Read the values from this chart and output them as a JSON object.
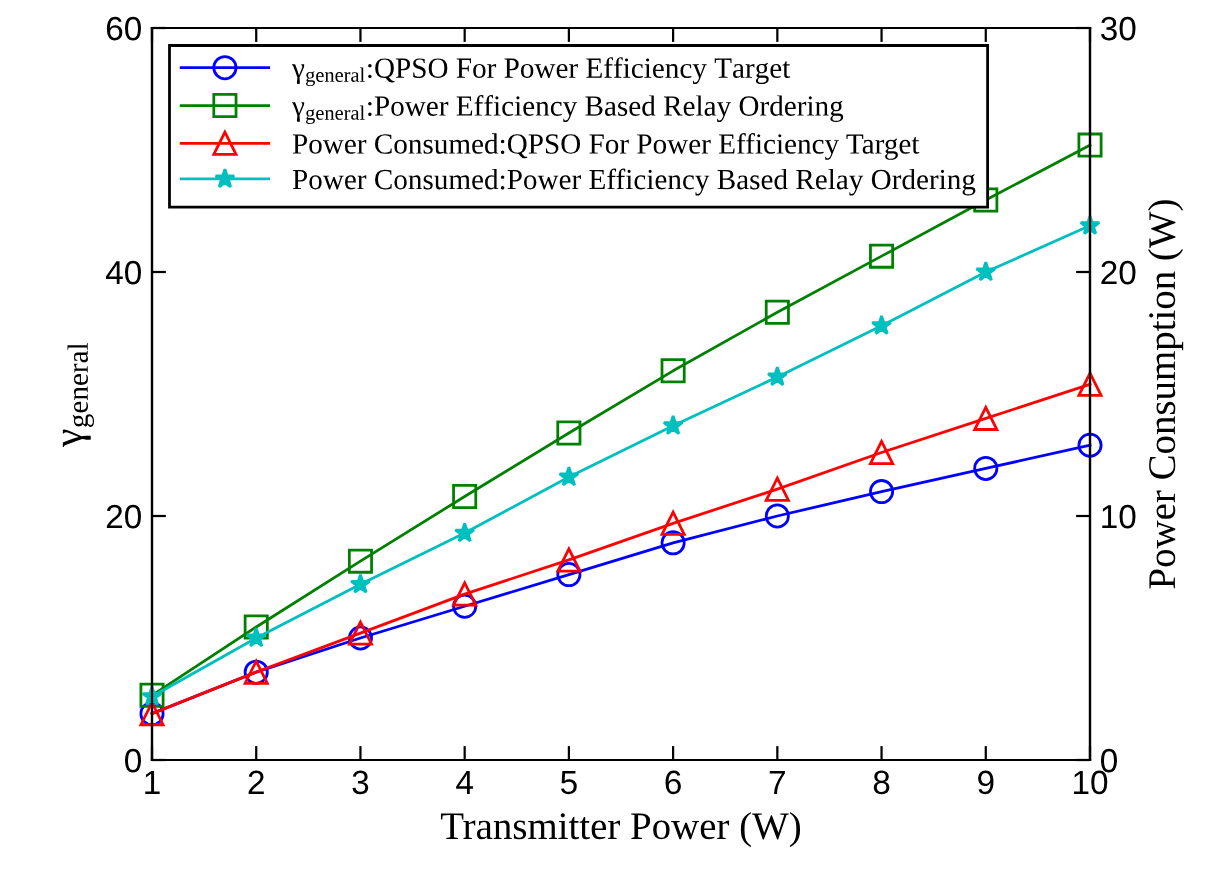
{
  "chart_data": {
    "type": "line",
    "xlabel": "Transmitter Power (W)",
    "ylabel": "γ$_{general}$",
    "y2label": "Power Consumption (W)",
    "x": [
      1,
      2,
      3,
      4,
      5,
      6,
      7,
      8,
      9,
      10
    ],
    "xlim": [
      1,
      10
    ],
    "xticks": [
      1,
      2,
      3,
      4,
      5,
      6,
      7,
      8,
      9,
      10
    ],
    "ylim": [
      0,
      60
    ],
    "yticks": [
      0,
      20,
      40,
      60
    ],
    "y2lim": [
      0,
      30
    ],
    "y2ticks": [
      0,
      10,
      20,
      30
    ],
    "grid": false,
    "legend": "top left",
    "line_style": "solid",
    "series": [
      {
        "name": "γ$_{general}$:QPSO For Power Efficiency Target",
        "color": "#0000ff",
        "marker": "circle",
        "values": [
          3.8,
          7.2,
          10.0,
          12.6,
          15.2,
          17.8,
          20.0,
          22.0,
          23.9,
          25.8
        ]
      },
      {
        "name": "γ$_{general}$:Power Efficiency Based Relay Ordering",
        "color": "#008000",
        "marker": "square",
        "values": [
          5.3,
          10.9,
          16.3,
          21.6,
          26.8,
          31.9,
          36.7,
          41.3,
          45.9,
          50.4
        ]
      },
      {
        "name": "Power Consumed:QPSO For Power Efficiency Target",
        "color": "#ff0000",
        "marker": "triangle",
        "axis": "y2",
        "values": [
          1.9,
          3.6,
          5.2,
          6.8,
          8.2,
          9.7,
          11.1,
          12.6,
          14.0,
          15.4
        ]
      },
      {
        "name": "Power Consumed:Power Efficiency Based Relay Ordering",
        "color": "#00bfbf",
        "marker": "star",
        "axis": "y2",
        "values": [
          2.6,
          5.0,
          7.2,
          9.3,
          11.6,
          13.7,
          15.7,
          17.8,
          20.0,
          21.9
        ]
      }
    ]
  }
}
